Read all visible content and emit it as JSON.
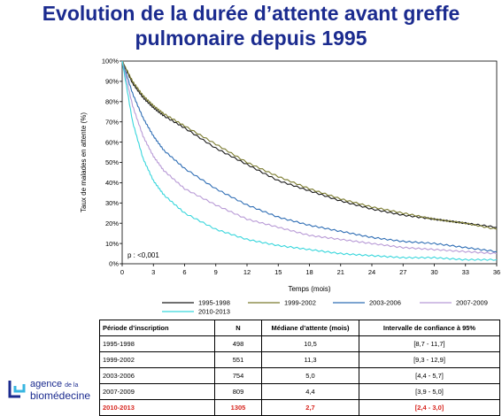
{
  "slide": {
    "title_line1": "Evolution de la durée d’attente avant greffe",
    "title_line2": "pulmonaire depuis 1995",
    "title_color": "#1b2b8f"
  },
  "chart_data": {
    "type": "line",
    "xlabel": "Temps (mois)",
    "ylabel": "Taux de malades en attente (%)",
    "xlim": [
      0,
      36
    ],
    "ylim": [
      0,
      100
    ],
    "x_ticks": [
      0,
      3,
      6,
      9,
      12,
      15,
      18,
      21,
      24,
      27,
      30,
      33,
      36
    ],
    "y_ticks": [
      0,
      10,
      20,
      30,
      40,
      50,
      60,
      70,
      80,
      90,
      100
    ],
    "y_tick_labels": [
      "0%",
      "10%",
      "20%",
      "30%",
      "40%",
      "50%",
      "60%",
      "70%",
      "80%",
      "90%",
      "100%"
    ],
    "grid": false,
    "legend_position": "bottom",
    "annotation": "p : <0,001",
    "series": [
      {
        "name": "1995-1998",
        "color": "#1a1a1a",
        "x": [
          0,
          1,
          2,
          3,
          4,
          6,
          9,
          12,
          15,
          18,
          21,
          24,
          27,
          30,
          33,
          36
        ],
        "y": [
          100,
          89,
          82,
          77,
          73,
          67,
          57,
          49,
          41,
          36,
          31,
          27,
          24,
          22,
          20,
          18
        ]
      },
      {
        "name": "1999-2002",
        "color": "#7a7a2e",
        "x": [
          0,
          1,
          2,
          3,
          4,
          6,
          9,
          12,
          15,
          18,
          21,
          24,
          27,
          30,
          33,
          36
        ],
        "y": [
          100,
          90,
          83,
          78,
          74,
          68,
          59,
          50,
          43,
          37,
          32,
          28,
          25,
          22,
          20,
          17
        ]
      },
      {
        "name": "2003-2006",
        "color": "#2e6db4",
        "x": [
          0,
          1,
          2,
          3,
          4,
          6,
          9,
          12,
          15,
          18,
          21,
          24,
          27,
          30,
          33,
          36
        ],
        "y": [
          100,
          84,
          72,
          63,
          56,
          47,
          37,
          29,
          23,
          19,
          16,
          13,
          11,
          10,
          8,
          6
        ]
      },
      {
        "name": "2007-2009",
        "color": "#b89ad6",
        "x": [
          0,
          1,
          2,
          3,
          4,
          6,
          9,
          12,
          15,
          18,
          21,
          24,
          27,
          30,
          33,
          36
        ],
        "y": [
          100,
          78,
          63,
          53,
          46,
          37,
          29,
          22,
          18,
          14,
          12,
          10,
          8,
          7,
          6,
          5
        ]
      },
      {
        "name": "2010-2013",
        "color": "#38d6dc",
        "x": [
          0,
          1,
          2,
          3,
          4,
          6,
          9,
          12,
          15,
          18,
          21,
          24,
          27,
          30,
          33,
          36
        ],
        "y": [
          100,
          70,
          52,
          41,
          34,
          25,
          17,
          12,
          9,
          7,
          5,
          4,
          3,
          3,
          2,
          2
        ]
      }
    ]
  },
  "table": {
    "headers": [
      "Période d’inscription",
      "N",
      "Médiane d’attente (mois)",
      "Intervalle de confiance à 95%"
    ],
    "rows": [
      [
        "1995-1998",
        "498",
        "10,5",
        "[8,7 - 11,7]"
      ],
      [
        "1999-2002",
        "551",
        "11,3",
        "[9,3 - 12,9]"
      ],
      [
        "2003-2006",
        "754",
        "5,0",
        "[4,4 - 5,7]"
      ],
      [
        "2007-2009",
        "809",
        "4,4",
        "[3,9 - 5,0]"
      ],
      [
        "2010-2013",
        "1305",
        "2,7",
        "[2,4 - 3,0]"
      ]
    ],
    "highlight_color": "#d7261f"
  },
  "logo": {
    "line1": "agence",
    "line1_suffix": "de la",
    "line2": "biomédecine",
    "color": "#1b2b8f"
  }
}
